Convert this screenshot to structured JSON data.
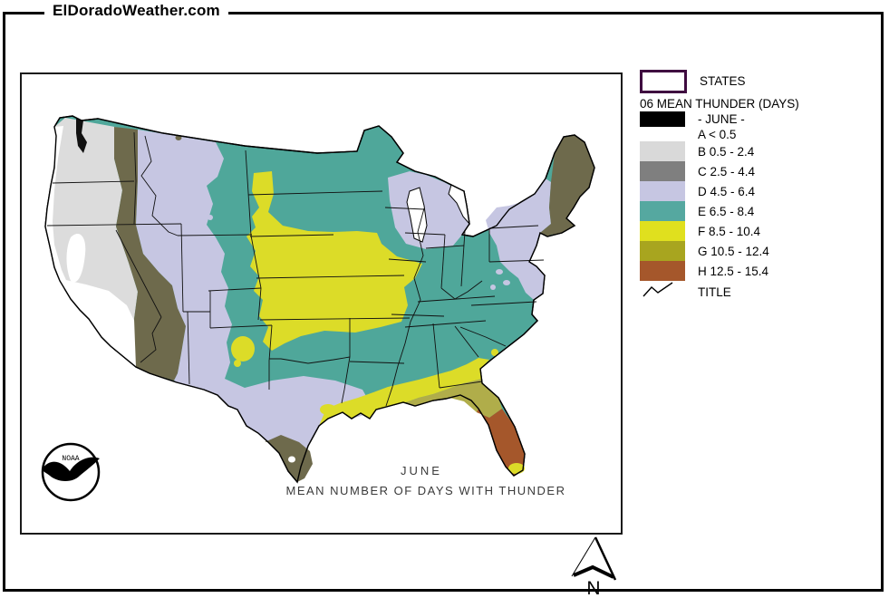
{
  "header": {
    "site": "ElDoradoWeather.com"
  },
  "legend": {
    "states_label": "STATES",
    "heading": "06 MEAN THUNDER (DAYS)",
    "states_border_color": "#3f0b40",
    "rows": [
      {
        "key": "june",
        "label": "- JUNE -",
        "color": "#000000"
      },
      {
        "key": "A",
        "label": "A < 0.5",
        "color": null
      },
      {
        "key": "B",
        "label": "B 0.5 - 2.4",
        "color": "#d9d9d9"
      },
      {
        "key": "C",
        "label": "C 2.5 - 4.4",
        "color": "#7f7f7f"
      },
      {
        "key": "D",
        "label": "D 4.5 - 6.4",
        "color": "#c6c6e2"
      },
      {
        "key": "E",
        "label": "E 6.5 - 8.4",
        "color": "#55a8a0"
      },
      {
        "key": "F",
        "label": "F 8.5 - 10.4",
        "color": "#e0e01e"
      },
      {
        "key": "G",
        "label": "G 10.5 - 12.4",
        "color": "#a8a51f"
      },
      {
        "key": "H",
        "label": "H 12.5 - 15.4",
        "color": "#a5572b"
      }
    ],
    "title_label": "TITLE"
  },
  "map": {
    "caption_line1": "JUNE",
    "caption_line2": "MEAN NUMBER OF DAYS WITH THUNDER",
    "noaa_label": "NOAA",
    "colors": {
      "A": "#ffffff",
      "B": "#dcdcdc",
      "C": "#6e6a4c",
      "D": "#c6c6e2",
      "E": "#4fa79a",
      "F": "#dcdc28",
      "G": "#b0ad4a",
      "H": "#a5572b",
      "water": "#ffffff",
      "sound": "#111111"
    }
  },
  "compass": {
    "label": "N"
  }
}
